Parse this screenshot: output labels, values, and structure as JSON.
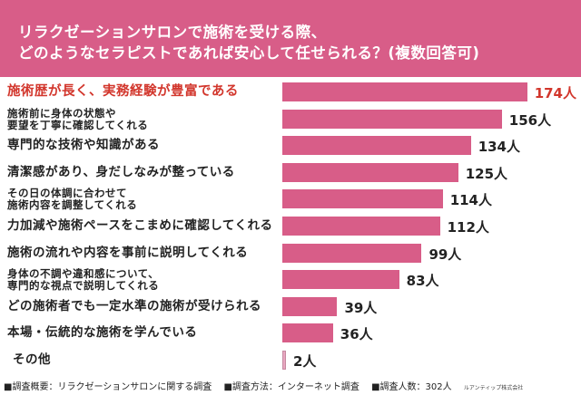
{
  "header": {
    "title_line1": "リラクゼーションサロンで施術を受ける際、",
    "title_line2": "どのようなセラピストであれば安心して任せられる？(複数回答可)"
  },
  "colors": {
    "header_bg": "#d85d88",
    "bar": "#d85d88",
    "highlight_text": "#d2362c"
  },
  "chart_data": {
    "type": "bar",
    "orientation": "horizontal",
    "title": "リラクゼーションサロンで施術を受ける際、どのようなセラピストであれば安心して任せられる？(複数回答可)",
    "unit": "人",
    "categories": [
      "施術歴が長く、実務経験が豊富である",
      "施術前に身体の状態や\n要望を丁寧に確認してくれる",
      "専門的な技術や知識がある",
      "清潔感があり、身だしなみが整っている",
      "その日の体調に合わせて\n施術内容を調整してくれる",
      "力加減や施術ペースをこまめに確認してくれる",
      "施術の流れや内容を事前に説明してくれる",
      "身体の不調や違和感について、\n専門的な視点で説明してくれる",
      "どの施術者でも一定水準の施術が受けられる",
      "本場・伝統的な施術を学んでいる",
      "その他"
    ],
    "values": [
      174,
      156,
      134,
      125,
      114,
      112,
      99,
      83,
      39,
      36,
      2
    ],
    "value_labels": [
      "174人",
      "156人",
      "134人",
      "125人",
      "114人",
      "112人",
      "99人",
      "83人",
      "39人",
      "36人",
      "2人"
    ],
    "highlight_index": 0
  },
  "footer": {
    "overview": "■調査概要：リラクゼーションサロンに関する調査",
    "method": "■調査方法：インターネット調査",
    "count": "■調査人数：302人",
    "company": "ルアンティップ株式会社"
  }
}
